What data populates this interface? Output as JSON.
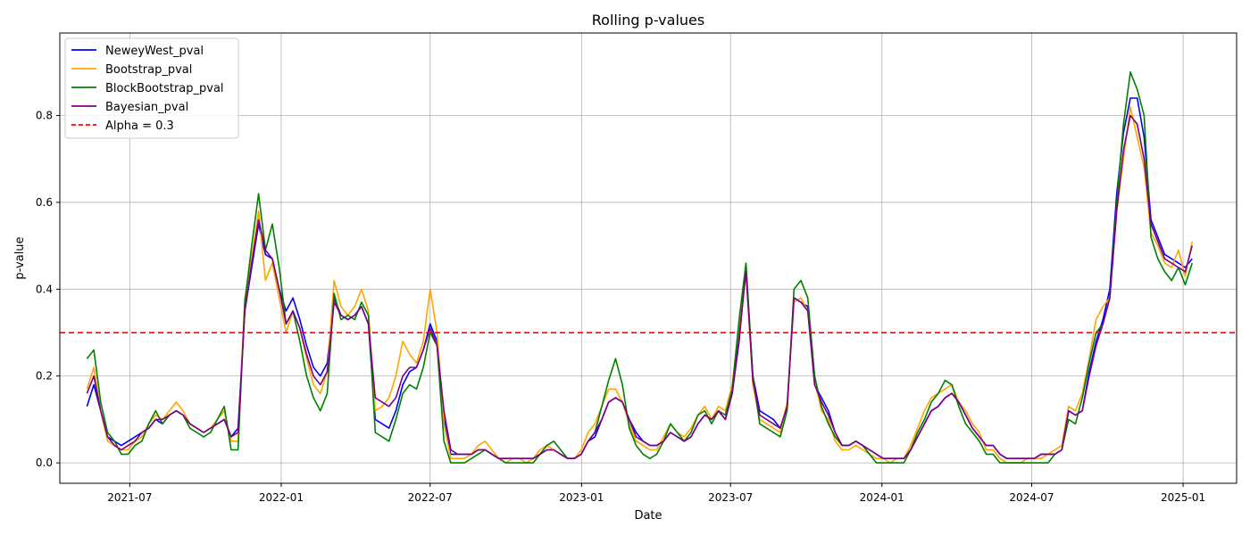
{
  "chart_data": {
    "type": "line",
    "title": "Rolling p-values",
    "xlabel": "Date",
    "ylabel": "p-value",
    "xlim": [
      "2021-04-07",
      "2025-03-07"
    ],
    "ylim": [
      -0.047,
      0.99
    ],
    "x_ticks": [
      "2021-07",
      "2022-01",
      "2022-07",
      "2023-01",
      "2023-07",
      "2024-01",
      "2024-07",
      "2025-01"
    ],
    "y_ticks": [
      "0.0",
      "0.2",
      "0.4",
      "0.6",
      "0.8"
    ],
    "y_tick_values": [
      0.0,
      0.2,
      0.4,
      0.6,
      0.8
    ],
    "grid": true,
    "legend_position": "top-left",
    "x_start": "2021-05-10",
    "x_end": "2025-01-12",
    "threshold": {
      "name": "Alpha = 0.3",
      "value": 0.3,
      "color": "#ff0000",
      "style": "dashed"
    },
    "series": [
      {
        "name": "NeweyWest_pval",
        "color": "#0000ff",
        "values": [
          0.13,
          0.18,
          0.12,
          0.06,
          0.05,
          0.04,
          0.05,
          0.06,
          0.07,
          0.08,
          0.1,
          0.09,
          0.11,
          0.12,
          0.11,
          0.09,
          0.08,
          0.07,
          0.08,
          0.09,
          0.1,
          0.06,
          0.08,
          0.35,
          0.45,
          0.55,
          0.48,
          0.47,
          0.4,
          0.35,
          0.38,
          0.33,
          0.27,
          0.22,
          0.2,
          0.23,
          0.38,
          0.34,
          0.33,
          0.34,
          0.36,
          0.32,
          0.1,
          0.09,
          0.08,
          0.12,
          0.18,
          0.21,
          0.22,
          0.26,
          0.32,
          0.28,
          0.1,
          0.02,
          0.02,
          0.02,
          0.02,
          0.03,
          0.03,
          0.02,
          0.01,
          0.01,
          0.01,
          0.01,
          0.01,
          0.01,
          0.02,
          0.03,
          0.03,
          0.02,
          0.01,
          0.01,
          0.02,
          0.05,
          0.06,
          0.1,
          0.14,
          0.15,
          0.14,
          0.1,
          0.07,
          0.05,
          0.04,
          0.04,
          0.05,
          0.07,
          0.06,
          0.05,
          0.06,
          0.09,
          0.11,
          0.1,
          0.12,
          0.1,
          0.16,
          0.28,
          0.45,
          0.2,
          0.12,
          0.11,
          0.1,
          0.08,
          0.13,
          0.38,
          0.37,
          0.36,
          0.18,
          0.15,
          0.12,
          0.07,
          0.04,
          0.04,
          0.05,
          0.04,
          0.03,
          0.02,
          0.01,
          0.01,
          0.01,
          0.01,
          0.03,
          0.06,
          0.09,
          0.12,
          0.13,
          0.15,
          0.16,
          0.14,
          0.11,
          0.08,
          0.06,
          0.04,
          0.04,
          0.02,
          0.01,
          0.01,
          0.01,
          0.01,
          0.01,
          0.02,
          0.02,
          0.02,
          0.03,
          0.12,
          0.11,
          0.12,
          0.21,
          0.28,
          0.33,
          0.4,
          0.62,
          0.76,
          0.84,
          0.84,
          0.75,
          0.56,
          0.52,
          0.48,
          0.47,
          0.46,
          0.45,
          0.47
        ]
      },
      {
        "name": "Bootstrap_pval",
        "color": "#ffa500",
        "values": [
          0.17,
          0.22,
          0.12,
          0.05,
          0.04,
          0.03,
          0.03,
          0.05,
          0.06,
          0.09,
          0.11,
          0.1,
          0.12,
          0.14,
          0.12,
          0.09,
          0.08,
          0.07,
          0.08,
          0.1,
          0.12,
          0.05,
          0.05,
          0.38,
          0.47,
          0.58,
          0.42,
          0.46,
          0.38,
          0.3,
          0.35,
          0.31,
          0.24,
          0.18,
          0.16,
          0.21,
          0.42,
          0.36,
          0.34,
          0.36,
          0.4,
          0.35,
          0.12,
          0.13,
          0.15,
          0.2,
          0.28,
          0.25,
          0.23,
          0.28,
          0.4,
          0.3,
          0.09,
          0.01,
          0.01,
          0.01,
          0.02,
          0.04,
          0.05,
          0.03,
          0.01,
          0.0,
          0.01,
          0.01,
          0.0,
          0.01,
          0.03,
          0.04,
          0.03,
          0.02,
          0.01,
          0.01,
          0.03,
          0.07,
          0.09,
          0.13,
          0.17,
          0.17,
          0.14,
          0.09,
          0.05,
          0.04,
          0.03,
          0.03,
          0.06,
          0.09,
          0.07,
          0.06,
          0.08,
          0.11,
          0.13,
          0.1,
          0.13,
          0.12,
          0.18,
          0.32,
          0.45,
          0.18,
          0.1,
          0.09,
          0.08,
          0.07,
          0.14,
          0.37,
          0.38,
          0.35,
          0.19,
          0.12,
          0.1,
          0.05,
          0.03,
          0.03,
          0.04,
          0.03,
          0.02,
          0.01,
          0.01,
          0.0,
          0.01,
          0.01,
          0.04,
          0.08,
          0.12,
          0.15,
          0.16,
          0.17,
          0.18,
          0.14,
          0.12,
          0.09,
          0.07,
          0.03,
          0.03,
          0.01,
          0.0,
          0.0,
          0.0,
          0.01,
          0.01,
          0.01,
          0.02,
          0.03,
          0.04,
          0.13,
          0.12,
          0.16,
          0.24,
          0.33,
          0.36,
          0.38,
          0.58,
          0.7,
          0.82,
          0.75,
          0.68,
          0.53,
          0.5,
          0.46,
          0.45,
          0.49,
          0.43,
          0.51
        ]
      },
      {
        "name": "BlockBootstrap_pval",
        "color": "#008000",
        "values": [
          0.24,
          0.26,
          0.14,
          0.07,
          0.05,
          0.02,
          0.02,
          0.04,
          0.05,
          0.09,
          0.12,
          0.09,
          0.11,
          0.12,
          0.11,
          0.08,
          0.07,
          0.06,
          0.07,
          0.1,
          0.13,
          0.03,
          0.03,
          0.37,
          0.5,
          0.62,
          0.49,
          0.55,
          0.45,
          0.32,
          0.35,
          0.28,
          0.2,
          0.15,
          0.12,
          0.16,
          0.39,
          0.33,
          0.34,
          0.33,
          0.37,
          0.34,
          0.07,
          0.06,
          0.05,
          0.1,
          0.16,
          0.18,
          0.17,
          0.22,
          0.3,
          0.27,
          0.05,
          0.0,
          0.0,
          0.0,
          0.01,
          0.02,
          0.03,
          0.02,
          0.01,
          0.0,
          0.0,
          0.0,
          0.0,
          0.0,
          0.02,
          0.04,
          0.05,
          0.03,
          0.01,
          0.01,
          0.02,
          0.05,
          0.07,
          0.13,
          0.19,
          0.24,
          0.18,
          0.08,
          0.04,
          0.02,
          0.01,
          0.02,
          0.05,
          0.09,
          0.07,
          0.05,
          0.07,
          0.11,
          0.12,
          0.09,
          0.12,
          0.11,
          0.17,
          0.33,
          0.46,
          0.2,
          0.09,
          0.08,
          0.07,
          0.06,
          0.12,
          0.4,
          0.42,
          0.38,
          0.2,
          0.13,
          0.09,
          0.06,
          0.04,
          0.04,
          0.05,
          0.04,
          0.02,
          0.0,
          0.0,
          0.0,
          0.0,
          0.0,
          0.03,
          0.07,
          0.1,
          0.14,
          0.16,
          0.19,
          0.18,
          0.13,
          0.09,
          0.07,
          0.05,
          0.02,
          0.02,
          0.0,
          0.0,
          0.0,
          0.0,
          0.0,
          0.0,
          0.0,
          0.0,
          0.02,
          0.03,
          0.1,
          0.09,
          0.15,
          0.23,
          0.3,
          0.32,
          0.38,
          0.6,
          0.78,
          0.9,
          0.86,
          0.8,
          0.52,
          0.47,
          0.44,
          0.42,
          0.45,
          0.41,
          0.46
        ]
      },
      {
        "name": "Bayesian_pval",
        "color": "#800080",
        "values": [
          0.16,
          0.2,
          0.12,
          0.06,
          0.04,
          0.03,
          0.04,
          0.05,
          0.07,
          0.08,
          0.1,
          0.1,
          0.11,
          0.12,
          0.11,
          0.09,
          0.08,
          0.07,
          0.08,
          0.09,
          0.1,
          0.06,
          0.07,
          0.35,
          0.46,
          0.56,
          0.49,
          0.47,
          0.4,
          0.32,
          0.35,
          0.31,
          0.25,
          0.2,
          0.18,
          0.21,
          0.37,
          0.34,
          0.33,
          0.34,
          0.36,
          0.32,
          0.15,
          0.14,
          0.13,
          0.15,
          0.2,
          0.22,
          0.22,
          0.26,
          0.31,
          0.27,
          0.12,
          0.03,
          0.02,
          0.02,
          0.02,
          0.03,
          0.03,
          0.02,
          0.01,
          0.01,
          0.01,
          0.01,
          0.01,
          0.01,
          0.02,
          0.03,
          0.03,
          0.02,
          0.01,
          0.01,
          0.02,
          0.05,
          0.07,
          0.1,
          0.14,
          0.15,
          0.14,
          0.1,
          0.06,
          0.05,
          0.04,
          0.04,
          0.05,
          0.07,
          0.06,
          0.05,
          0.06,
          0.09,
          0.11,
          0.1,
          0.12,
          0.1,
          0.16,
          0.29,
          0.44,
          0.19,
          0.11,
          0.1,
          0.09,
          0.08,
          0.13,
          0.38,
          0.37,
          0.35,
          0.18,
          0.14,
          0.11,
          0.07,
          0.04,
          0.04,
          0.05,
          0.04,
          0.03,
          0.02,
          0.01,
          0.01,
          0.01,
          0.01,
          0.03,
          0.06,
          0.09,
          0.12,
          0.13,
          0.15,
          0.16,
          0.14,
          0.11,
          0.08,
          0.06,
          0.04,
          0.04,
          0.02,
          0.01,
          0.01,
          0.01,
          0.01,
          0.01,
          0.02,
          0.02,
          0.02,
          0.03,
          0.12,
          0.11,
          0.12,
          0.2,
          0.27,
          0.32,
          0.38,
          0.58,
          0.72,
          0.8,
          0.78,
          0.7,
          0.55,
          0.51,
          0.47,
          0.46,
          0.45,
          0.44,
          0.5
        ]
      }
    ]
  }
}
